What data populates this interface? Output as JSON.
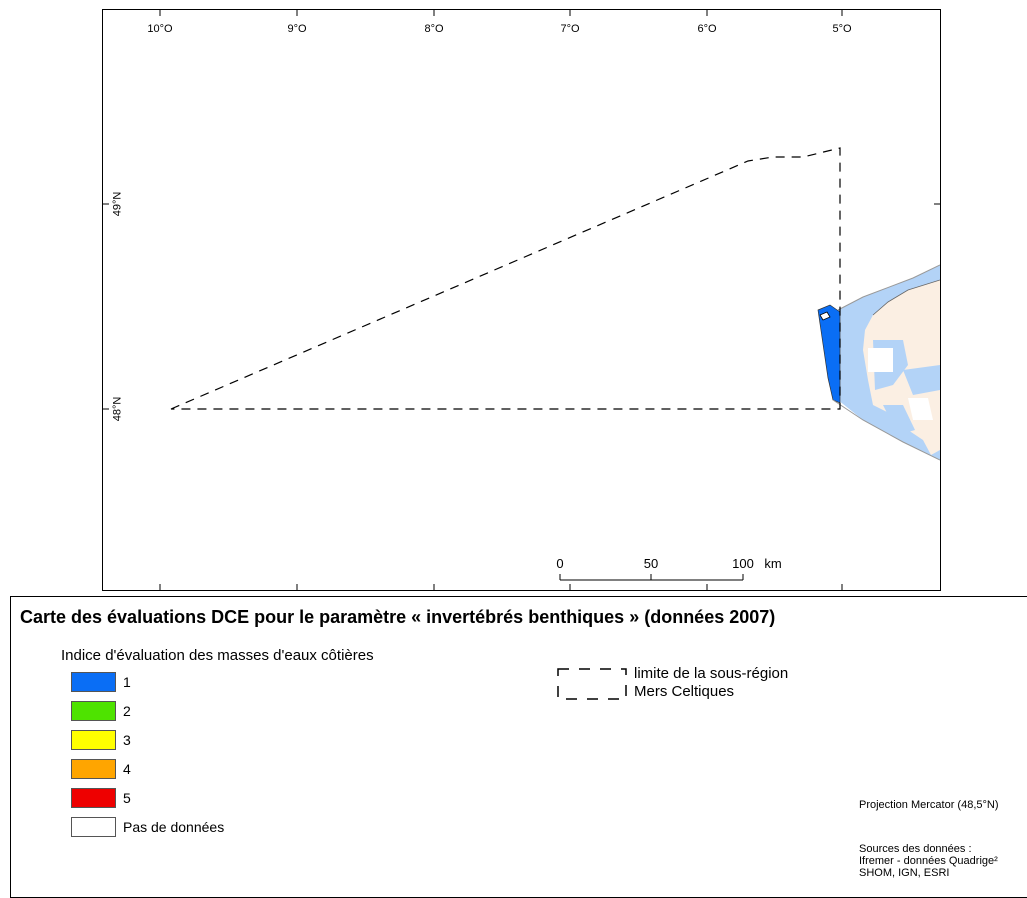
{
  "map": {
    "longitude_labels": [
      "10°O",
      "9°O",
      "8°O",
      "7°O",
      "6°O",
      "5°O"
    ],
    "latitude_labels": [
      "49°N",
      "48°N"
    ],
    "scale_bar": {
      "labels": [
        "0",
        "50",
        "100"
      ],
      "unit": "km"
    },
    "colors": {
      "sea_light_blue": "#b3d3f7",
      "land": "#fbefe3",
      "class_1_blue": "#0a6ef5"
    }
  },
  "legend": {
    "title": "Carte des évaluations DCE pour le paramètre « invertébrés benthiques » (données 2007)",
    "subtitle": "Indice d'évaluation des masses d'eaux côtières",
    "items": [
      {
        "label": "1",
        "color": "#0a6ef5"
      },
      {
        "label": "2",
        "color": "#4ee300"
      },
      {
        "label": "3",
        "color": "#ffff00"
      },
      {
        "label": "4",
        "color": "#ffa500"
      },
      {
        "label": "5",
        "color": "#ee0000"
      },
      {
        "label": "Pas de données",
        "color": "#ffffff"
      }
    ],
    "limit_label_line1": "limite de la sous-région",
    "limit_label_line2": "Mers Celtiques",
    "projection": "Projection Mercator (48,5°N)",
    "sources_title": "Sources des données :",
    "sources_line1": "Ifremer - données Quadrige²",
    "sources_line2": "SHOM, IGN, ESRI"
  }
}
